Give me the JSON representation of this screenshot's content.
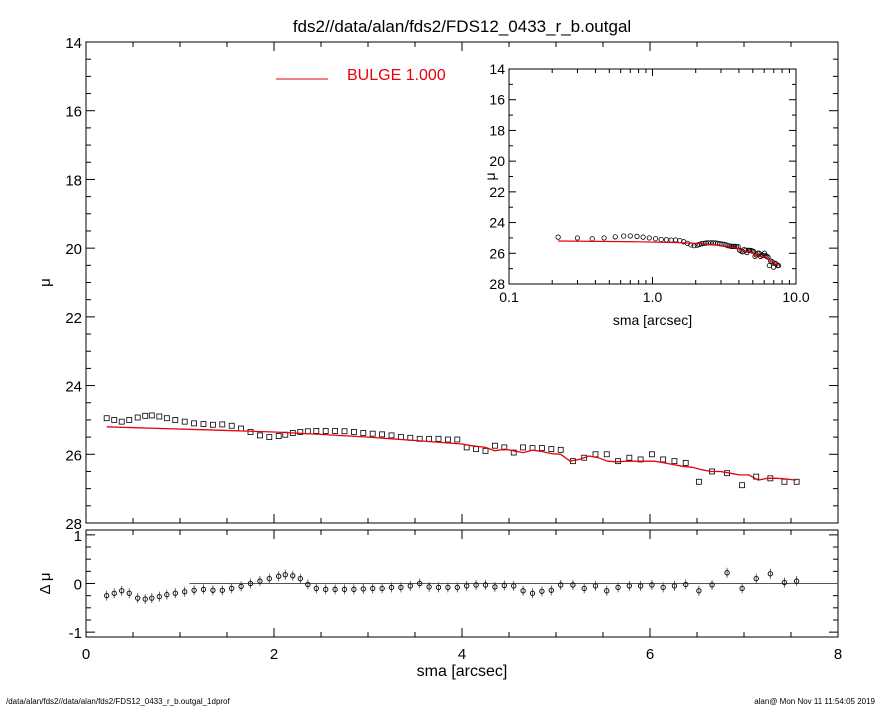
{
  "footer": {
    "left": "/data/alan/fds2//data/alan/fds2/FDS12_0433_r_b.outgal_1dprof",
    "right": "alan@  Mon Nov 11 11:54:05 2019"
  },
  "colors": {
    "model": "#e8000b",
    "data": "#000000",
    "background": "#ffffff"
  },
  "chart_data": [
    {
      "type": "scatter",
      "panel": "main",
      "title": "fds2//data/alan/fds2/FDS12_0433_r_b.outgal",
      "xlabel": "",
      "ylabel": "μ",
      "xlim": [
        0,
        8
      ],
      "ylim": [
        28,
        14
      ],
      "y_inverted": true,
      "yticks": [
        14,
        16,
        18,
        20,
        22,
        24,
        26,
        28
      ],
      "xticks": [
        0,
        2,
        4,
        6,
        8
      ],
      "legend": {
        "label": "BULGE",
        "value": "1.000",
        "placement": "top-left"
      },
      "series": [
        {
          "name": "data",
          "marker": "square",
          "x": [
            0.22,
            0.3,
            0.38,
            0.46,
            0.55,
            0.63,
            0.7,
            0.78,
            0.86,
            0.95,
            1.05,
            1.15,
            1.25,
            1.35,
            1.45,
            1.55,
            1.65,
            1.75,
            1.85,
            1.95,
            2.05,
            2.12,
            2.2,
            2.28,
            2.36,
            2.45,
            2.55,
            2.65,
            2.75,
            2.85,
            2.95,
            3.05,
            3.15,
            3.25,
            3.35,
            3.45,
            3.55,
            3.65,
            3.75,
            3.85,
            3.95,
            4.05,
            4.15,
            4.25,
            4.35,
            4.45,
            4.55,
            4.65,
            4.75,
            4.85,
            4.95,
            5.05,
            5.18,
            5.3,
            5.42,
            5.54,
            5.66,
            5.78,
            5.9,
            6.02,
            6.14,
            6.26,
            6.38,
            6.52,
            6.66,
            6.82,
            6.98,
            7.13,
            7.28,
            7.43,
            7.56
          ],
          "y": [
            24.95,
            25.0,
            25.05,
            25.0,
            24.93,
            24.88,
            24.87,
            24.9,
            24.95,
            25.0,
            25.05,
            25.1,
            25.12,
            25.14,
            25.13,
            25.17,
            25.25,
            25.35,
            25.45,
            25.5,
            25.47,
            25.43,
            25.38,
            25.35,
            25.33,
            25.32,
            25.32,
            25.32,
            25.33,
            25.35,
            25.38,
            25.4,
            25.42,
            25.45,
            25.5,
            25.52,
            25.55,
            25.55,
            25.55,
            25.57,
            25.57,
            25.8,
            25.85,
            25.9,
            25.75,
            25.8,
            25.95,
            25.8,
            25.82,
            25.82,
            25.85,
            25.87,
            26.2,
            26.1,
            26.0,
            26.0,
            26.2,
            26.1,
            26.15,
            26.0,
            26.15,
            26.2,
            26.25,
            26.8,
            26.5,
            26.55,
            26.9,
            26.65,
            26.7,
            26.8,
            26.8
          ]
        },
        {
          "name": "BULGE",
          "marker": "line",
          "x": [
            0.22,
            0.8,
            1.4,
            2.0,
            2.5,
            3.0,
            3.5,
            4.0,
            4.1,
            4.25,
            4.35,
            4.45,
            4.55,
            4.65,
            4.75,
            4.85,
            4.95,
            5.05,
            5.15,
            5.25,
            5.35,
            5.45,
            5.55,
            5.65,
            5.75,
            5.85,
            5.95,
            6.05,
            6.15,
            6.25,
            6.35,
            6.45,
            6.55,
            6.65,
            6.75,
            6.85,
            6.95,
            7.05,
            7.15,
            7.25,
            7.35,
            7.45,
            7.55
          ],
          "y": [
            25.2,
            25.25,
            25.3,
            25.35,
            25.42,
            25.5,
            25.6,
            25.7,
            25.75,
            25.8,
            25.9,
            25.85,
            25.9,
            25.95,
            25.88,
            25.92,
            25.98,
            26.0,
            26.2,
            26.15,
            26.05,
            26.1,
            26.2,
            26.22,
            26.2,
            26.2,
            26.2,
            26.2,
            26.25,
            26.3,
            26.35,
            26.38,
            26.45,
            26.5,
            26.5,
            26.55,
            26.6,
            26.6,
            26.75,
            26.7,
            26.7,
            26.72,
            26.75
          ]
        }
      ]
    },
    {
      "type": "scatter",
      "panel": "residual",
      "xlabel": "sma [arcsec]",
      "ylabel": "Δ μ",
      "xlim": [
        0,
        8
      ],
      "ylim": [
        -1.1,
        1.1
      ],
      "yticks": [
        -1,
        0,
        1
      ],
      "xticks": [
        0,
        2,
        4,
        6,
        8
      ],
      "zero_line_x": [
        1.1,
        8
      ],
      "series": [
        {
          "name": "residual",
          "marker": "circle-errorbar",
          "x": [
            0.22,
            0.3,
            0.38,
            0.46,
            0.55,
            0.63,
            0.7,
            0.78,
            0.86,
            0.95,
            1.05,
            1.15,
            1.25,
            1.35,
            1.45,
            1.55,
            1.65,
            1.75,
            1.85,
            1.95,
            2.05,
            2.12,
            2.2,
            2.28,
            2.36,
            2.45,
            2.55,
            2.65,
            2.75,
            2.85,
            2.95,
            3.05,
            3.15,
            3.25,
            3.35,
            3.45,
            3.55,
            3.65,
            3.75,
            3.85,
            3.95,
            4.05,
            4.15,
            4.25,
            4.35,
            4.45,
            4.55,
            4.65,
            4.75,
            4.85,
            4.95,
            5.05,
            5.18,
            5.3,
            5.42,
            5.54,
            5.66,
            5.78,
            5.9,
            6.02,
            6.14,
            6.26,
            6.38,
            6.52,
            6.66,
            6.82,
            6.98,
            7.13,
            7.28,
            7.43,
            7.56
          ],
          "y": [
            -0.25,
            -0.2,
            -0.15,
            -0.2,
            -0.3,
            -0.32,
            -0.3,
            -0.27,
            -0.23,
            -0.2,
            -0.17,
            -0.14,
            -0.12,
            -0.14,
            -0.14,
            -0.1,
            -0.06,
            0.0,
            0.05,
            0.1,
            0.15,
            0.18,
            0.16,
            0.1,
            -0.02,
            -0.1,
            -0.12,
            -0.12,
            -0.12,
            -0.12,
            -0.11,
            -0.1,
            -0.1,
            -0.08,
            -0.08,
            -0.05,
            0.0,
            -0.07,
            -0.08,
            -0.08,
            -0.08,
            -0.05,
            -0.03,
            -0.03,
            -0.07,
            -0.04,
            -0.05,
            -0.15,
            -0.2,
            -0.16,
            -0.14,
            -0.03,
            -0.03,
            -0.1,
            -0.05,
            -0.15,
            -0.08,
            -0.05,
            -0.05,
            -0.03,
            -0.08,
            -0.05,
            -0.02,
            -0.15,
            -0.03,
            0.22,
            -0.1,
            0.1,
            0.2,
            0.02,
            0.05
          ]
        }
      ]
    },
    {
      "type": "scatter",
      "panel": "inset",
      "xlabel": "sma [arcsec]",
      "ylabel": "μ",
      "xscale": "log",
      "xlim": [
        0.1,
        10.0
      ],
      "ylim": [
        28,
        14
      ],
      "yticks": [
        14,
        16,
        18,
        20,
        22,
        24,
        26,
        28
      ],
      "xticks": [
        0.1,
        1.0,
        10.0
      ],
      "xticklabels": [
        "0.1",
        "1.0",
        "10.0"
      ],
      "series": [
        {
          "name": "data",
          "marker": "circle",
          "x": [
            0.22,
            0.3,
            0.38,
            0.46,
            0.55,
            0.63,
            0.7,
            0.78,
            0.86,
            0.95,
            1.05,
            1.15,
            1.25,
            1.35,
            1.45,
            1.55,
            1.65,
            1.75,
            1.85,
            1.95,
            2.05,
            2.12,
            2.2,
            2.28,
            2.36,
            2.45,
            2.55,
            2.65,
            2.75,
            2.85,
            2.95,
            3.05,
            3.15,
            3.25,
            3.35,
            3.45,
            3.55,
            3.65,
            3.75,
            3.85,
            3.95,
            4.05,
            4.15,
            4.25,
            4.35,
            4.45,
            4.55,
            4.65,
            4.75,
            4.85,
            4.95,
            5.05,
            5.18,
            5.3,
            5.42,
            5.54,
            5.66,
            5.78,
            5.9,
            6.02,
            6.14,
            6.26,
            6.38,
            6.52,
            6.66,
            6.82,
            6.98,
            7.13,
            7.28,
            7.43,
            7.56
          ],
          "y": [
            24.95,
            25.0,
            25.05,
            25.0,
            24.93,
            24.88,
            24.87,
            24.9,
            24.95,
            25.0,
            25.05,
            25.1,
            25.12,
            25.14,
            25.13,
            25.17,
            25.25,
            25.35,
            25.45,
            25.5,
            25.47,
            25.43,
            25.38,
            25.35,
            25.33,
            25.32,
            25.32,
            25.32,
            25.33,
            25.35,
            25.38,
            25.4,
            25.42,
            25.45,
            25.5,
            25.52,
            25.55,
            25.55,
            25.55,
            25.57,
            25.57,
            25.8,
            25.85,
            25.9,
            25.75,
            25.8,
            25.95,
            25.8,
            25.82,
            25.82,
            25.85,
            25.87,
            26.2,
            26.1,
            26.0,
            26.0,
            26.2,
            26.1,
            26.15,
            26.0,
            26.15,
            26.2,
            26.25,
            26.8,
            26.5,
            26.55,
            26.9,
            26.65,
            26.7,
            26.8,
            26.8
          ]
        },
        {
          "name": "BULGE",
          "marker": "line",
          "x": [
            0.22,
            0.8,
            1.4,
            2.0,
            2.5,
            3.0,
            3.5,
            4.0,
            4.1,
            4.25,
            4.35,
            4.45,
            4.55,
            4.65,
            4.75,
            4.85,
            4.95,
            5.05,
            5.15,
            5.25,
            5.35,
            5.45,
            5.55,
            5.65,
            5.75,
            5.85,
            5.95,
            6.05,
            6.15,
            6.25,
            6.35,
            6.45,
            6.55,
            6.65,
            6.75,
            6.85,
            6.95,
            7.05,
            7.15,
            7.25,
            7.35,
            7.45,
            7.55
          ],
          "y": [
            25.2,
            25.25,
            25.3,
            25.35,
            25.42,
            25.5,
            25.6,
            25.7,
            25.75,
            25.8,
            25.9,
            25.85,
            25.9,
            25.95,
            25.88,
            25.92,
            25.98,
            26.0,
            26.2,
            26.15,
            26.05,
            26.1,
            26.2,
            26.22,
            26.2,
            26.2,
            26.2,
            26.2,
            26.25,
            26.3,
            26.35,
            26.38,
            26.45,
            26.5,
            26.5,
            26.55,
            26.6,
            26.6,
            26.75,
            26.7,
            26.7,
            26.72,
            26.75
          ]
        }
      ]
    }
  ]
}
